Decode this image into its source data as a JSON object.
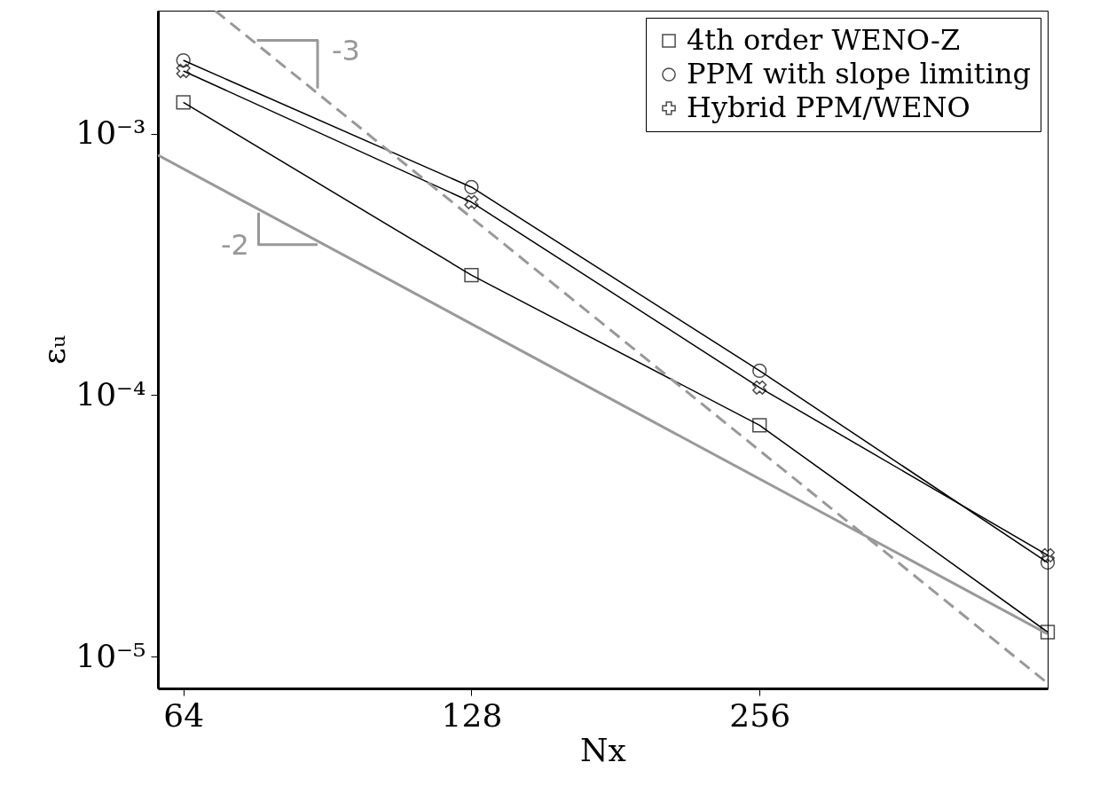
{
  "chart_data": {
    "type": "line",
    "xlabel": "Nx",
    "ylabel": "εᵤ",
    "log": "xy",
    "grid": false,
    "legend": "top right",
    "x": [
      64,
      128,
      256,
      512
    ],
    "xlim": [
      60.2,
      512
    ],
    "xticks": [
      64,
      128,
      256
    ],
    "ylim": [
      7.55e-06,
      0.00296
    ],
    "yticks": [
      {
        "value": 0.001,
        "label": "10⁻³"
      },
      {
        "value": 0.0001,
        "label": "10⁻⁴"
      },
      {
        "value": 1e-05,
        "label": "10⁻⁵"
      }
    ],
    "series": [
      {
        "name": "4th order WENO-Z",
        "color": "#000000",
        "marker": "square",
        "values": [
          0.00132,
          0.000288,
          7.67e-05,
          1.24e-05
        ]
      },
      {
        "name": "PPM with slope limiting",
        "color": "#000000",
        "marker": "circle",
        "values": [
          0.00191,
          0.000625,
          0.000124,
          2.29e-05
        ]
      },
      {
        "name": "Hybrid PPM/WENO",
        "color": "#000000",
        "marker": "cross",
        "values": [
          0.00174,
          0.000548,
          0.000107,
          2.44e-05
        ]
      },
      {
        "color": "#999999",
        "marker": "none",
        "x": [
          60.2,
          512
        ],
        "values": [
          0.000829,
          1.22e-05
        ]
      },
      {
        "color": "#999999",
        "marker": "none",
        "line_style": "dashed",
        "x": [
          69.1,
          512
        ],
        "values": [
          0.00296,
          7.9e-06
        ]
      },
      {
        "color": "#999999",
        "marker": "none",
        "x": [
          76.4,
          88.4,
          88.4
        ],
        "values": [
          0.00228,
          0.00228,
          0.00149
        ]
      },
      {
        "color": "#999999",
        "marker": "none",
        "x": [
          76.7,
          76.7,
          88.4
        ],
        "values": [
          0.000499,
          0.000377,
          0.000377
        ]
      }
    ],
    "annotations": [
      "-3",
      "-2"
    ]
  }
}
